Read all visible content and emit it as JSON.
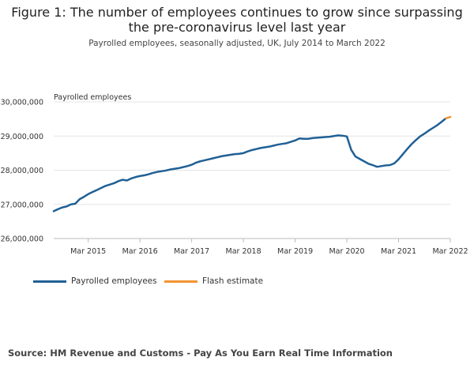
{
  "title": "Figure 1: The number of employees continues to grow since surpassing the pre-coronavirus level last year",
  "subtitle": "Payrolled employees, seasonally adjusted, UK, July 2014 to March 2022",
  "source": "Source: HM Revenue and Customs - Pay As You Earn Real Time Information",
  "chart_data": {
    "type": "line",
    "ylabel": "Payrolled employees",
    "ylim": [
      26000000,
      30000000
    ],
    "y_ticks": [
      26000000,
      27000000,
      28000000,
      29000000,
      30000000
    ],
    "y_tick_labels": [
      "26,000,000",
      "27,000,000",
      "28,000,000",
      "29,000,000",
      "30,000,000"
    ],
    "x_ticks": [
      "2015-03",
      "2016-03",
      "2017-03",
      "2018-03",
      "2019-03",
      "2020-03",
      "2021-03",
      "2022-03"
    ],
    "x_tick_labels": [
      "Mar 2015",
      "Mar 2016",
      "Mar 2017",
      "Mar 2018",
      "Mar 2019",
      "Mar 2020",
      "Mar 2021",
      "Mar 2022"
    ],
    "xlim": [
      "2014-07",
      "2022-03"
    ],
    "grid": "horizontal",
    "legend": "bottom-left",
    "series": [
      {
        "name": "Payrolled employees",
        "color": "#206095",
        "x": [
          "2014-07",
          "2014-08",
          "2014-09",
          "2014-10",
          "2014-11",
          "2014-12",
          "2015-01",
          "2015-02",
          "2015-03",
          "2015-04",
          "2015-05",
          "2015-06",
          "2015-07",
          "2015-08",
          "2015-09",
          "2015-10",
          "2015-11",
          "2015-12",
          "2016-01",
          "2016-02",
          "2016-03",
          "2016-04",
          "2016-05",
          "2016-06",
          "2016-07",
          "2016-08",
          "2016-09",
          "2016-10",
          "2016-11",
          "2016-12",
          "2017-01",
          "2017-02",
          "2017-03",
          "2017-04",
          "2017-05",
          "2017-06",
          "2017-07",
          "2017-08",
          "2017-09",
          "2017-10",
          "2017-11",
          "2017-12",
          "2018-01",
          "2018-02",
          "2018-03",
          "2018-04",
          "2018-05",
          "2018-06",
          "2018-07",
          "2018-08",
          "2018-09",
          "2018-10",
          "2018-11",
          "2018-12",
          "2019-01",
          "2019-02",
          "2019-03",
          "2019-04",
          "2019-05",
          "2019-06",
          "2019-07",
          "2019-08",
          "2019-09",
          "2019-10",
          "2019-11",
          "2019-12",
          "2020-01",
          "2020-02",
          "2020-03",
          "2020-04",
          "2020-05",
          "2020-06",
          "2020-07",
          "2020-08",
          "2020-09",
          "2020-10",
          "2020-11",
          "2020-12",
          "2021-01",
          "2021-02",
          "2021-03",
          "2021-04",
          "2021-05",
          "2021-06",
          "2021-07",
          "2021-08",
          "2021-09",
          "2021-10",
          "2021-11",
          "2021-12",
          "2022-01",
          "2022-02"
        ],
        "values": [
          26800000,
          26860000,
          26910000,
          26940000,
          27000000,
          27020000,
          27150000,
          27220000,
          27300000,
          27360000,
          27420000,
          27480000,
          27540000,
          27580000,
          27620000,
          27680000,
          27720000,
          27700000,
          27760000,
          27800000,
          27830000,
          27850000,
          27880000,
          27920000,
          27950000,
          27970000,
          27990000,
          28020000,
          28040000,
          28060000,
          28090000,
          28120000,
          28160000,
          28220000,
          28260000,
          28290000,
          28320000,
          28350000,
          28380000,
          28410000,
          28430000,
          28450000,
          28470000,
          28480000,
          28500000,
          28550000,
          28590000,
          28620000,
          28650000,
          28670000,
          28690000,
          28720000,
          28750000,
          28770000,
          28790000,
          28830000,
          28870000,
          28930000,
          28920000,
          28920000,
          28940000,
          28950000,
          28960000,
          28970000,
          28980000,
          29000000,
          29020000,
          29010000,
          28990000,
          28600000,
          28400000,
          28330000,
          28260000,
          28190000,
          28150000,
          28100000,
          28120000,
          28140000,
          28150000,
          28200000,
          28320000,
          28470000,
          28620000,
          28760000,
          28880000,
          28990000,
          29070000,
          29160000,
          29240000,
          29320000,
          29420000,
          29520000
        ]
      },
      {
        "name": "Flash estimate",
        "color": "#F39431",
        "x": [
          "2022-02",
          "2022-03"
        ],
        "values": [
          29520000,
          29560000
        ]
      }
    ]
  }
}
